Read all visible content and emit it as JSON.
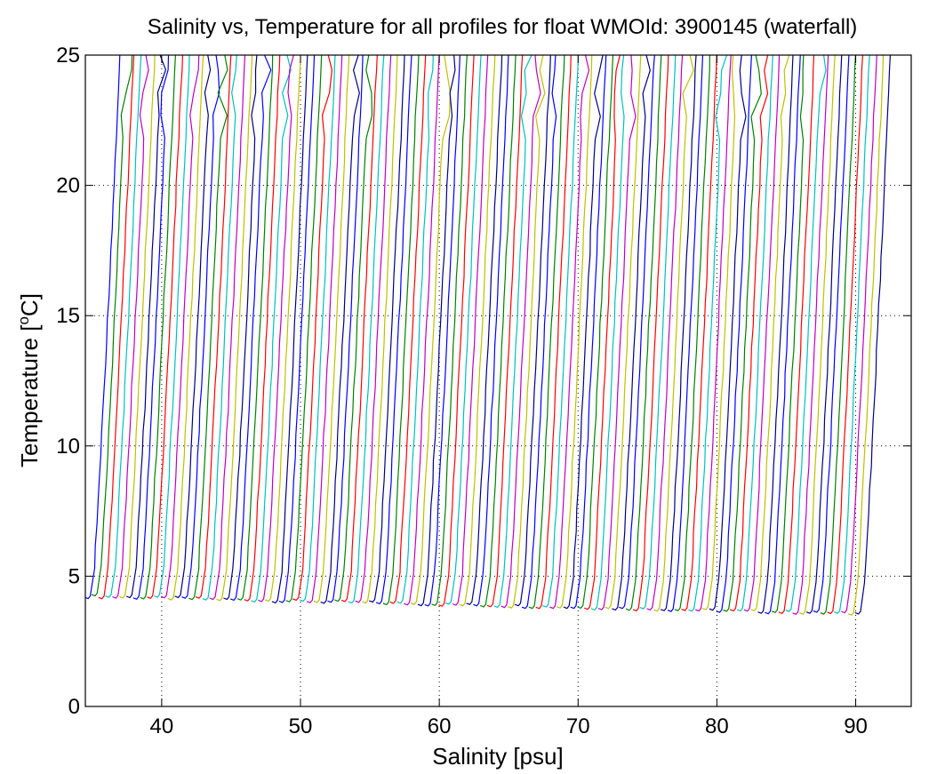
{
  "chart_data": {
    "type": "line",
    "title": "Salinity vs, Temperature for all profiles for float WMOId: 3900145 (waterfall)",
    "xlabel": "Salinity [psu]",
    "ylabel_main": "Temperature [",
    "ylabel_sup": "o",
    "ylabel_tail": "C]",
    "xlim": [
      34.5,
      94
    ],
    "ylim": [
      0,
      25
    ],
    "xticks": [
      40,
      50,
      60,
      70,
      80,
      90
    ],
    "yticks": [
      0,
      5,
      10,
      15,
      20,
      25
    ],
    "grid": true,
    "grid_style": "dotted",
    "series_colors": [
      "#0000ff",
      "#008000",
      "#ff0000",
      "#00bfbf",
      "#bf00bf",
      "#bfbf00",
      "#000080"
    ],
    "profile_shape": {
      "description": "each profile: near-vertical salinity trace from ~4.2 C at bottom to 25 C at top",
      "bottom_temperature": 4.2,
      "top_temperature": 25,
      "salinity_offset_per_profile": 0.5,
      "salinity_span_over_depth": 2.0
    },
    "profile_count": 112,
    "first_profile_base_salinity": 34.8
  }
}
